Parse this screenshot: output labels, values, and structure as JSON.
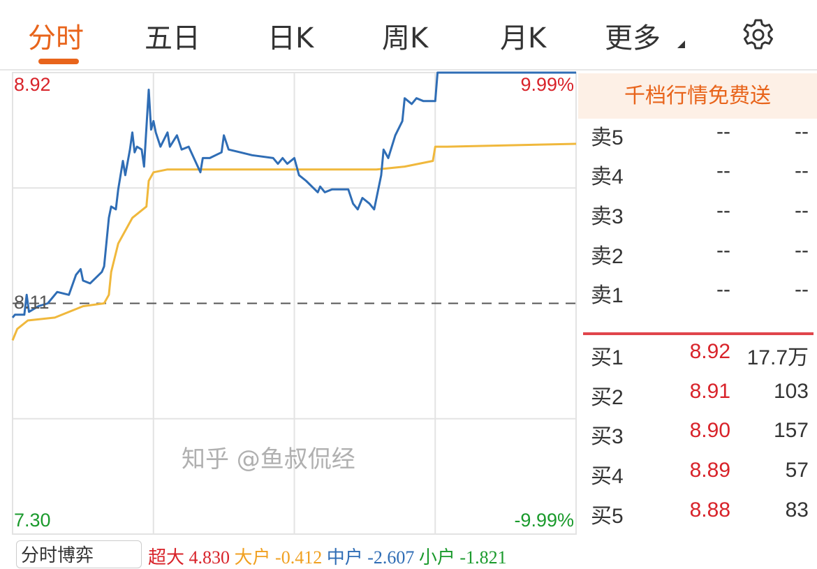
{
  "tabs": [
    {
      "label": "分时",
      "active": true
    },
    {
      "label": "五日"
    },
    {
      "label": "日K"
    },
    {
      "label": "周K"
    },
    {
      "label": "月K"
    },
    {
      "label": "更多"
    }
  ],
  "settings_icon": "gear-icon",
  "colors": {
    "accent": "#e8641b",
    "up": "#d8232a",
    "down": "#1a9a2c",
    "price_line": "#2f6db5",
    "avg_line": "#f0b83c"
  },
  "chart_data": {
    "type": "line",
    "y_range": [
      7.3,
      8.92
    ],
    "x_range": [
      0,
      240
    ],
    "prev_close": 8.11,
    "labels": {
      "high": "8.92",
      "low": "7.30",
      "prev_close": "8.11",
      "high_pct": "9.99%",
      "low_pct": "-9.99%"
    },
    "series": [
      {
        "key": "price",
        "x": [
          0,
          1,
          5,
          6,
          7,
          11,
          15,
          19,
          24,
          27,
          29,
          30,
          33,
          38,
          39,
          41,
          42,
          44,
          45,
          47,
          48,
          50,
          51,
          52,
          53,
          55,
          56,
          58,
          59,
          60,
          61,
          63,
          66,
          67,
          70,
          72,
          75,
          80,
          81,
          84,
          89,
          90,
          92,
          97,
          102,
          111,
          113,
          115,
          117,
          120,
          122,
          125,
          130,
          131,
          133,
          136,
          143,
          145,
          147,
          149,
          152,
          154,
          157,
          158,
          160,
          163,
          166,
          167,
          170,
          172,
          175,
          180,
          181,
          240
        ],
        "y": [
          8.06,
          8.07,
          8.07,
          8.14,
          8.08,
          8.1,
          8.11,
          8.15,
          8.14,
          8.21,
          8.23,
          8.19,
          8.18,
          8.22,
          8.24,
          8.41,
          8.45,
          8.44,
          8.51,
          8.61,
          8.56,
          8.65,
          8.71,
          8.64,
          8.66,
          8.65,
          8.59,
          8.86,
          8.72,
          8.75,
          8.71,
          8.66,
          8.71,
          8.66,
          8.7,
          8.65,
          8.66,
          8.57,
          8.62,
          8.62,
          8.64,
          8.7,
          8.65,
          8.64,
          8.63,
          8.62,
          8.6,
          8.62,
          8.6,
          8.62,
          8.56,
          8.54,
          8.5,
          8.52,
          8.5,
          8.51,
          8.51,
          8.46,
          8.44,
          8.48,
          8.46,
          8.44,
          8.56,
          8.65,
          8.62,
          8.7,
          8.75,
          8.83,
          8.81,
          8.83,
          8.82,
          8.82,
          8.92,
          8.92
        ]
      },
      {
        "key": "average",
        "x": [
          0,
          2,
          6.5,
          18,
          30,
          39,
          41,
          42,
          45,
          51,
          57,
          58,
          60,
          66,
          120,
          155,
          167,
          179,
          180,
          185,
          240
        ],
        "y": [
          7.98,
          8.02,
          8.05,
          8.06,
          8.1,
          8.11,
          8.14,
          8.22,
          8.32,
          8.41,
          8.45,
          8.54,
          8.57,
          8.58,
          8.58,
          8.58,
          8.59,
          8.61,
          8.66,
          8.66,
          8.67
        ]
      }
    ],
    "grid": true
  },
  "orderbook": {
    "banner": "千档行情免费送",
    "asks": [
      {
        "label": "卖5",
        "price": "--",
        "vol": "--"
      },
      {
        "label": "卖4",
        "price": "--",
        "vol": "--"
      },
      {
        "label": "卖3",
        "price": "--",
        "vol": "--"
      },
      {
        "label": "卖2",
        "price": "--",
        "vol": "--"
      },
      {
        "label": "卖1",
        "price": "--",
        "vol": "--"
      }
    ],
    "bids": [
      {
        "label": "买1",
        "price": "8.92",
        "vol": "17.7万"
      },
      {
        "label": "买2",
        "price": "8.91",
        "vol": "103"
      },
      {
        "label": "买3",
        "price": "8.90",
        "vol": "157"
      },
      {
        "label": "买4",
        "price": "8.89",
        "vol": "57"
      },
      {
        "label": "买5",
        "price": "8.88",
        "vol": "83"
      }
    ]
  },
  "bottom": {
    "button": "分时博弈",
    "stats": [
      {
        "label": "超大",
        "value": "4.830",
        "color": "#d8232a"
      },
      {
        "label": "大户",
        "value": "-0.412",
        "color": "#f0a020"
      },
      {
        "label": "中户",
        "value": "-2.607",
        "color": "#2f6db5"
      },
      {
        "label": "小户",
        "value": "-1.821",
        "color": "#1a9a2c"
      }
    ]
  },
  "watermark": "知乎 @鱼叔侃经"
}
